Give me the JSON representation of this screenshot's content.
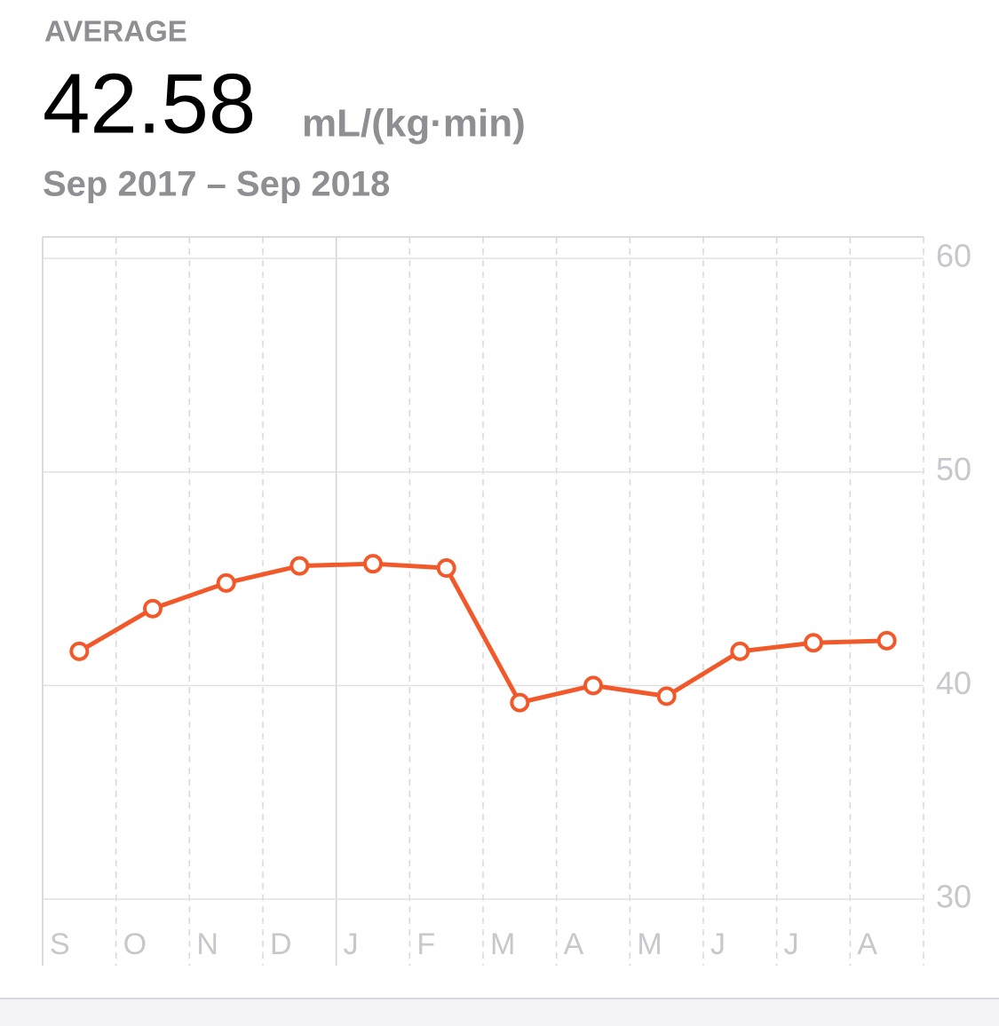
{
  "summary": {
    "label": "AVERAGE",
    "value": 42.58,
    "unit": "mL/(kg·min)",
    "range": "Sep 2017 – Sep 2018"
  },
  "chart_data": {
    "type": "line",
    "categories": [
      "S",
      "O",
      "N",
      "D",
      "J",
      "F",
      "M",
      "A",
      "M",
      "J",
      "J",
      "A"
    ],
    "series": [
      {
        "color": "#f2592a",
        "values": [
          41.6,
          43.6,
          44.8,
          45.6,
          45.7,
          45.5,
          39.2,
          40.0,
          39.5,
          41.6,
          42.0,
          42.1
        ]
      }
    ],
    "ylim": [
      30,
      61
    ],
    "yticks": [
      30,
      40,
      50,
      60
    ],
    "grid": true
  }
}
